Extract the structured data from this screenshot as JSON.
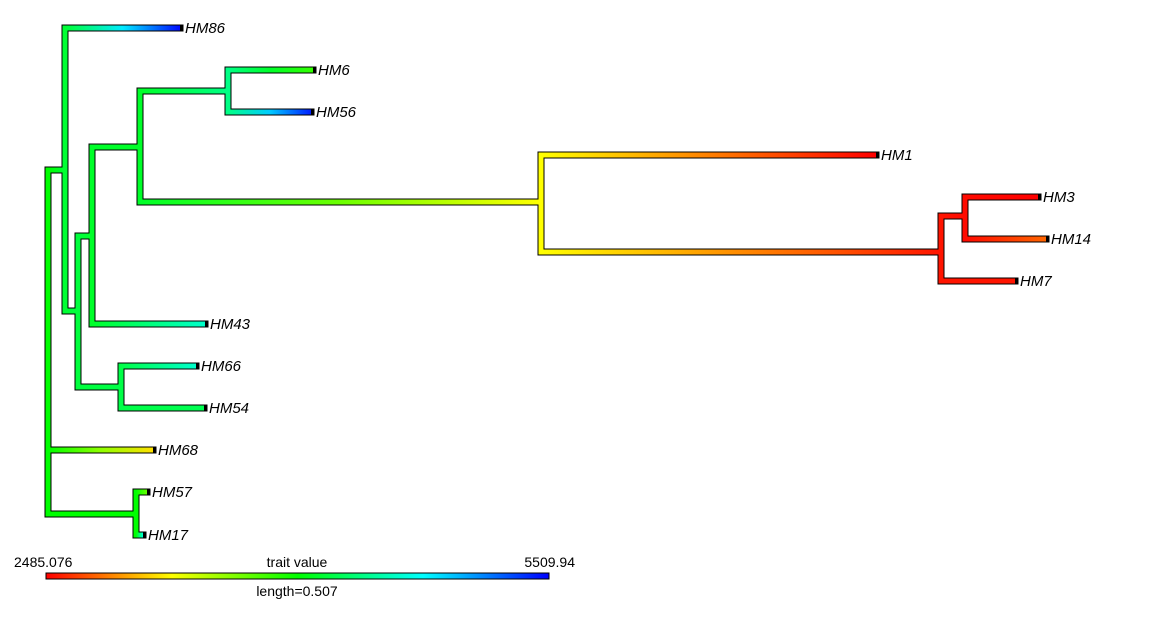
{
  "legend": {
    "min_label": "2485.076",
    "max_label": "5509.94",
    "title": "trait value",
    "length_label": "length=0.507",
    "gradient_colors": [
      "#ff0000",
      "#ffff00",
      "#00ff00",
      "#00ffff",
      "#0000ff"
    ]
  },
  "tips": [
    {
      "id": "HM86",
      "label": "HM86"
    },
    {
      "id": "HM6",
      "label": "HM6"
    },
    {
      "id": "HM56",
      "label": "HM56"
    },
    {
      "id": "HM1",
      "label": "HM1"
    },
    {
      "id": "HM3",
      "label": "HM3"
    },
    {
      "id": "HM14",
      "label": "HM14"
    },
    {
      "id": "HM7",
      "label": "HM7"
    },
    {
      "id": "HM43",
      "label": "HM43"
    },
    {
      "id": "HM66",
      "label": "HM66"
    },
    {
      "id": "HM54",
      "label": "HM54"
    },
    {
      "id": "HM68",
      "label": "HM68"
    },
    {
      "id": "HM57",
      "label": "HM57"
    },
    {
      "id": "HM17",
      "label": "HM17"
    }
  ]
}
